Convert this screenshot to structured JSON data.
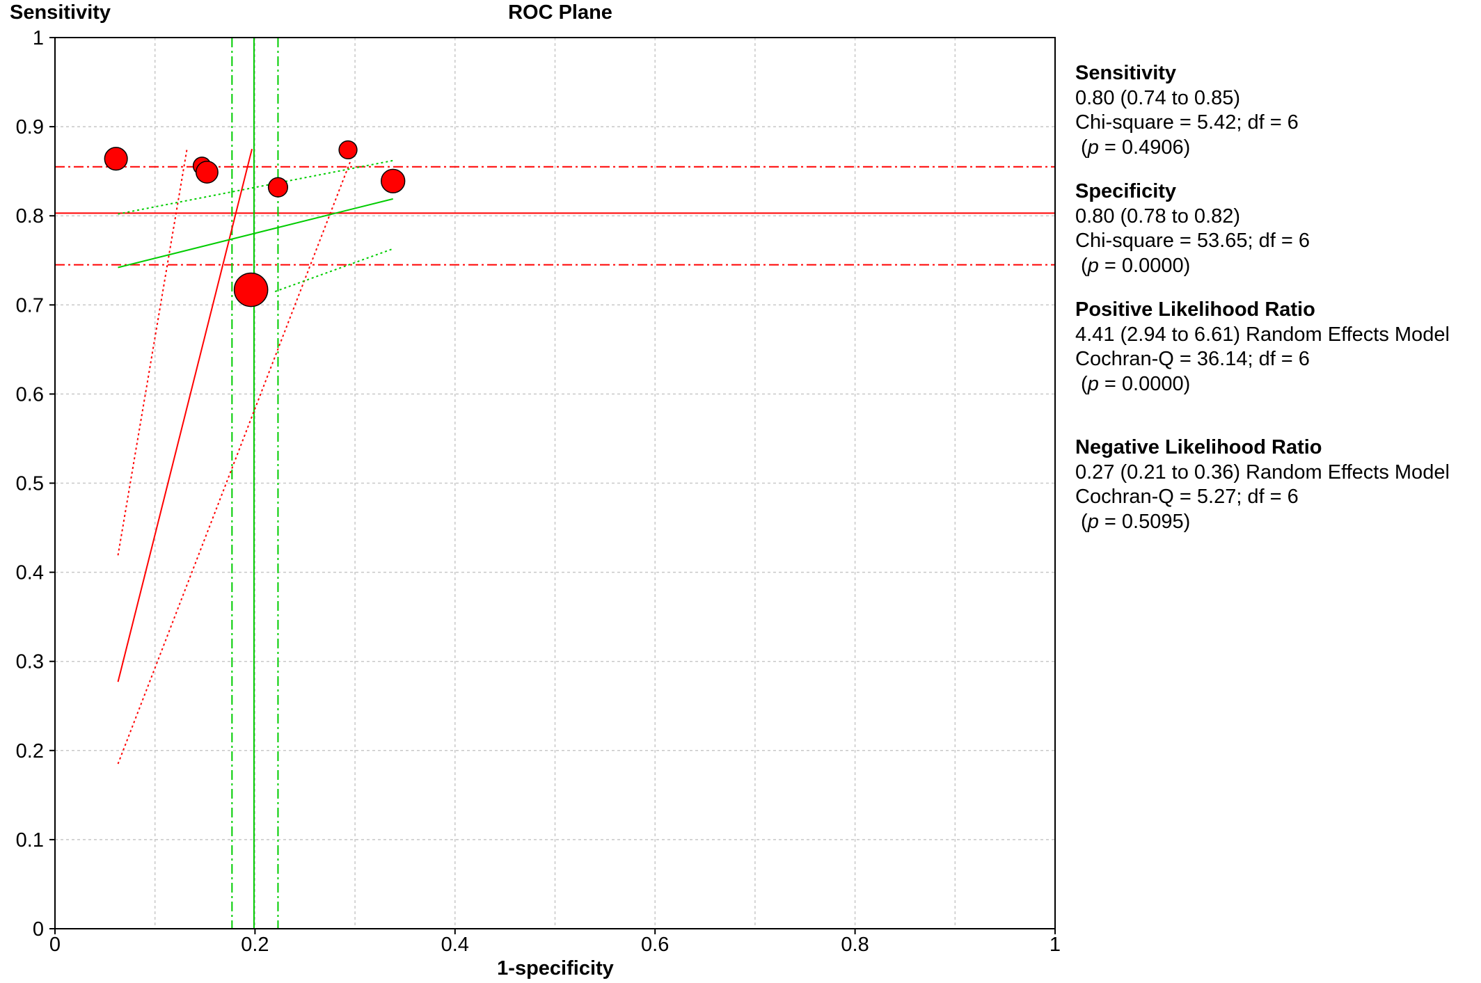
{
  "chart_data": {
    "type": "scatter",
    "title": "ROC Plane",
    "xlabel": "1-specificity",
    "ylabel": "Sensitivity",
    "xlim": [
      0,
      1
    ],
    "ylim": [
      0,
      1
    ],
    "x_ticks": [
      "0",
      "0.2",
      "0.4",
      "0.6",
      "0.8",
      "1"
    ],
    "y_ticks": [
      "0",
      "0.1",
      "0.2",
      "0.3",
      "0.4",
      "0.5",
      "0.6",
      "0.7",
      "0.8",
      "0.9",
      "1"
    ],
    "grid": true,
    "point_color": "#ff0000",
    "pooled_color_sensitivity": "#ff0000",
    "pooled_color_specificity": "#00cc00",
    "studies": [
      {
        "x": 0.061,
        "y": 0.864,
        "weight": 3.0
      },
      {
        "x": 0.147,
        "y": 0.856,
        "weight": 1.8
      },
      {
        "x": 0.152,
        "y": 0.849,
        "weight": 2.8
      },
      {
        "x": 0.196,
        "y": 0.717,
        "weight": 5.5
      },
      {
        "x": 0.223,
        "y": 0.832,
        "weight": 2.2
      },
      {
        "x": 0.293,
        "y": 0.874,
        "weight": 1.9
      },
      {
        "x": 0.338,
        "y": 0.839,
        "weight": 3.2
      }
    ],
    "pooled_sensitivity": {
      "estimate": 0.803,
      "lower": 0.745,
      "upper": 0.855
    },
    "pooled_specificity_fpr": {
      "estimate": 0.199,
      "lower": 0.177,
      "upper": 0.223
    },
    "plr_lines": {
      "estimate": [
        [
          0.063,
          0.277
        ],
        [
          0.197,
          0.875
        ]
      ],
      "lower": [
        [
          0.063,
          0.185
        ],
        [
          0.296,
          0.863
        ]
      ],
      "upper": [
        [
          0.063,
          0.419
        ],
        [
          0.132,
          0.875
        ]
      ]
    },
    "nlr_lines": {
      "estimate": [
        [
          0.063,
          0.742
        ],
        [
          0.338,
          0.819
        ]
      ],
      "lower": [
        [
          0.22,
          0.715
        ],
        [
          0.338,
          0.763
        ]
      ],
      "upper": [
        [
          0.063,
          0.802
        ],
        [
          0.338,
          0.862
        ]
      ]
    }
  },
  "summary": [
    {
      "heading": "Sensitivity",
      "estimate": "0.80 (0.74 to 0.85)",
      "test": "Chi-square = 5.42; df =  6",
      "p": " = 0.4906)"
    },
    {
      "heading": "Specificity",
      "estimate": "0.80 (0.78 to 0.82)",
      "test": "Chi-square = 53.65; df =  6",
      "p": " = 0.0000)"
    },
    {
      "heading": "Positive Likelihood Ratio",
      "estimate": "4.41 (2.94 to 6.61) Random Effects Model",
      "test": "Cochran-Q = 36.14; df =  6",
      "p": " = 0.0000)"
    },
    {
      "heading": "Negative Likelihood Ratio",
      "estimate": "0.27 (0.21 to 0.36) Random Effects Model",
      "test": "Cochran-Q = 5.27; df =  6",
      "p": " = 0.5095)"
    }
  ]
}
